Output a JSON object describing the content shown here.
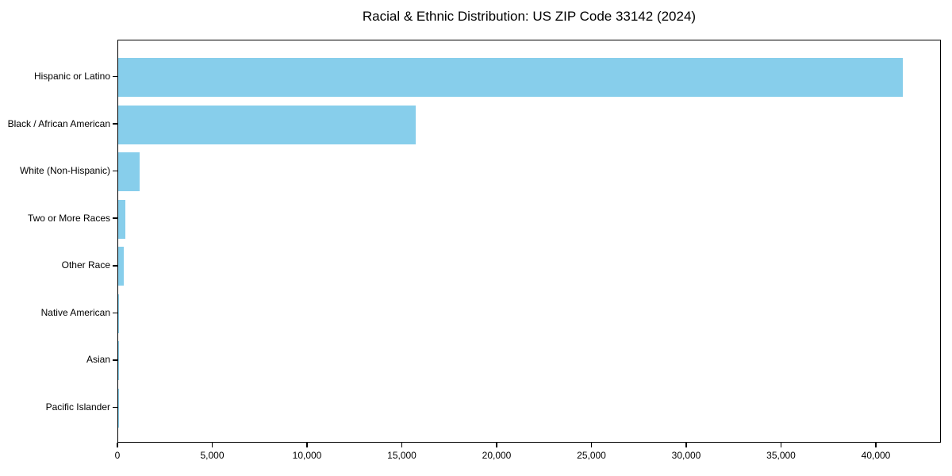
{
  "chart_data": {
    "type": "bar",
    "orientation": "horizontal",
    "title": "Racial & Ethnic Distribution: US ZIP Code 33142 (2024)",
    "xlabel": "",
    "ylabel": "",
    "categories": [
      "Hispanic or Latino",
      "Black / African American",
      "White (Non-Hispanic)",
      "Two or More Races",
      "Other Race",
      "Native American",
      "Asian",
      "Pacific Islander"
    ],
    "values": [
      41400,
      15700,
      1130,
      360,
      290,
      60,
      45,
      10
    ],
    "bar_color": "#87CEEB",
    "axis_color": "#000000",
    "text_color": "#000000",
    "grid": false,
    "legend": "none",
    "xlim": [
      0,
      43430
    ],
    "x_ticks": [
      {
        "value": 0,
        "label": "0"
      },
      {
        "value": 5000,
        "label": "5,000"
      },
      {
        "value": 10000,
        "label": "10,000"
      },
      {
        "value": 15000,
        "label": "15,000"
      },
      {
        "value": 20000,
        "label": "20,000"
      },
      {
        "value": 25000,
        "label": "25,000"
      },
      {
        "value": 30000,
        "label": "30,000"
      },
      {
        "value": 35000,
        "label": "35,000"
      },
      {
        "value": 40000,
        "label": "40,000"
      }
    ]
  }
}
